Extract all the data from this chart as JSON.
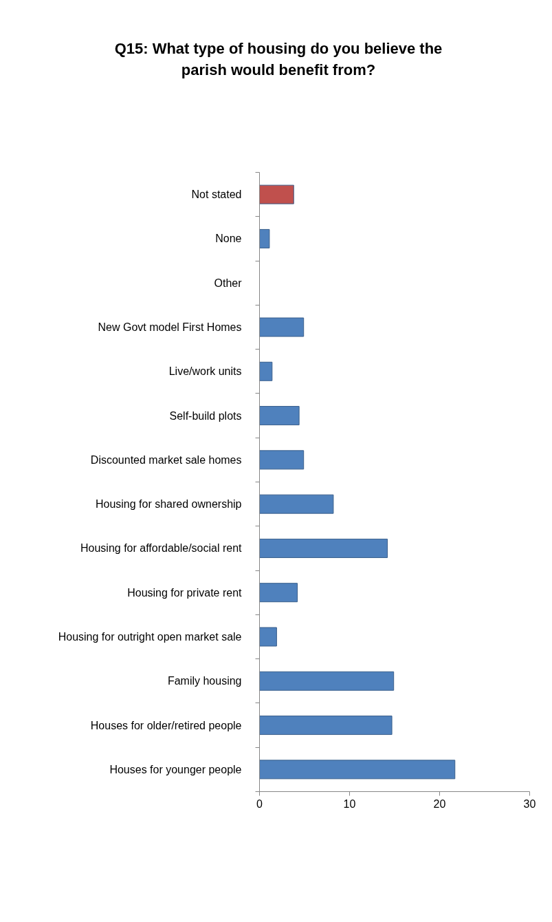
{
  "chart_data": {
    "type": "bar",
    "orientation": "horizontal",
    "title": "Q15: What type of housing do you believe the\nparish would benefit from?",
    "categories": [
      "Not stated",
      "None",
      "Other",
      "New Govt model First Homes",
      "Live/work units",
      "Self-build plots",
      "Discounted market sale homes",
      "Housing for shared ownership",
      "Housing for affordable/social rent",
      "Housing for private rent",
      "Housing for outright open market sale",
      "Family housing",
      "Houses for older/retired people",
      "Houses for younger people"
    ],
    "values": [
      3.8,
      1.1,
      0,
      4.9,
      1.4,
      4.4,
      4.9,
      8.2,
      14.2,
      4.2,
      1.9,
      14.9,
      14.7,
      21.7
    ],
    "colors": [
      "#c0504d",
      "#4f81bd",
      "#4f81bd",
      "#4f81bd",
      "#4f81bd",
      "#4f81bd",
      "#4f81bd",
      "#4f81bd",
      "#4f81bd",
      "#4f81bd",
      "#4f81bd",
      "#4f81bd",
      "#4f81bd",
      "#4f81bd"
    ],
    "xlim": [
      0,
      30
    ],
    "xticks": [
      0,
      10,
      20,
      30
    ],
    "grid": false
  }
}
